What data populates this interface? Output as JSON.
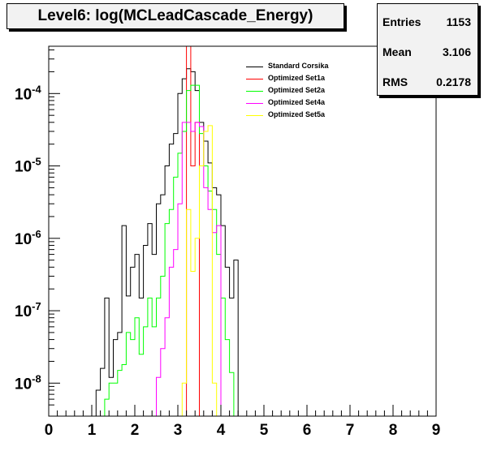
{
  "title": "Level6:  log(MCLeadCascade_Energy)",
  "stats": [
    {
      "key": "Entries",
      "value": "1153"
    },
    {
      "key": "Mean",
      "value": "3.106"
    },
    {
      "key": "RMS",
      "value": "0.2178"
    }
  ],
  "colors": {
    "Standard Corsika": "#000000",
    "Optimized Set1a": "#ff0000",
    "Optimized Set2a": "#00ff00",
    "Optimized Set4a": "#ff00ff",
    "Optimized Set5a": "#ffff00"
  },
  "chart_data": {
    "type": "line",
    "title": "Level6:  log(MCLeadCascade_Energy)",
    "xlabel": "",
    "ylabel": "",
    "xlim": [
      0,
      9
    ],
    "ylim": [
      3.5e-09,
      0.00045
    ],
    "yscale": "log",
    "grid": false,
    "legend_position": "top-center",
    "xticks": [
      "0",
      "1",
      "2",
      "3",
      "4",
      "5",
      "6",
      "7",
      "8",
      "9"
    ],
    "yticks": [
      {
        "base": "10",
        "exp": "-8",
        "value": 1e-08
      },
      {
        "base": "10",
        "exp": "-7",
        "value": 1e-07
      },
      {
        "base": "10",
        "exp": "-6",
        "value": 1e-06
      },
      {
        "base": "10",
        "exp": "-5",
        "value": 1e-05
      },
      {
        "base": "10",
        "exp": "-4",
        "value": 0.0001
      }
    ],
    "bin_width": 0.1,
    "series": [
      {
        "name": "Standard Corsika",
        "color": "#000000",
        "points": [
          [
            1.1,
            8e-09
          ],
          [
            1.2,
            1.6e-08
          ],
          [
            1.3,
            1.5e-07
          ],
          [
            1.4,
            1.2e-08
          ],
          [
            1.5,
            4e-08
          ],
          [
            1.6,
            5e-08
          ],
          [
            1.7,
            1.5e-06
          ],
          [
            1.8,
            1.6e-07
          ],
          [
            1.9,
            4e-07
          ],
          [
            2.0,
            6e-07
          ],
          [
            2.1,
            1.5e-07
          ],
          [
            2.2,
            8e-07
          ],
          [
            2.3,
            1.6e-06
          ],
          [
            2.4,
            6e-07
          ],
          [
            2.5,
            3e-06
          ],
          [
            2.6,
            4e-06
          ],
          [
            2.7,
            1e-05
          ],
          [
            2.8,
            2e-05
          ],
          [
            2.9,
            2.8e-05
          ],
          [
            3.0,
            0.0001
          ],
          [
            3.1,
            0.00016
          ],
          [
            3.2,
            0.00022
          ],
          [
            3.3,
            0.0002
          ],
          [
            3.4,
            0.00011
          ],
          [
            3.5,
            4e-05
          ],
          [
            3.6,
            2.2e-05
          ],
          [
            3.7,
            1.1e-05
          ],
          [
            3.8,
            5e-06
          ],
          [
            3.9,
            4e-06
          ],
          [
            4.0,
            1.5e-06
          ],
          [
            4.1,
            4e-07
          ],
          [
            4.2,
            1.5e-07
          ],
          [
            4.3,
            5e-07
          ]
        ]
      },
      {
        "name": "Optimized Set1a",
        "color": "#ff0000",
        "points": [
          [
            3.2,
            0.00045
          ],
          [
            3.3,
            1e-05
          ],
          [
            3.4,
            4e-05
          ]
        ]
      },
      {
        "name": "Optimized Set2a",
        "color": "#00ff00",
        "points": [
          [
            1.3,
            6e-09
          ],
          [
            1.4,
            1e-08
          ],
          [
            1.5,
            1e-08
          ],
          [
            1.6,
            1.5e-08
          ],
          [
            1.7,
            1.8e-08
          ],
          [
            1.8,
            5e-08
          ],
          [
            1.9,
            4e-08
          ],
          [
            2.0,
            8e-08
          ],
          [
            2.1,
            2.5e-08
          ],
          [
            2.2,
            6e-08
          ],
          [
            2.3,
            1.5e-07
          ],
          [
            2.4,
            6e-08
          ],
          [
            2.5,
            1.5e-07
          ],
          [
            2.6,
            3e-07
          ],
          [
            2.7,
            1.6e-06
          ],
          [
            2.8,
            2.5e-06
          ],
          [
            2.9,
            7e-06
          ],
          [
            3.0,
            1.5e-05
          ],
          [
            3.1,
            3e-05
          ],
          [
            3.2,
            0.00011
          ],
          [
            3.3,
            0.00013
          ],
          [
            3.4,
            0.00013
          ],
          [
            3.5,
            2.8e-05
          ],
          [
            3.6,
            1e-05
          ],
          [
            3.7,
            4.5e-06
          ],
          [
            3.8,
            2.5e-06
          ],
          [
            3.9,
            6e-07
          ],
          [
            4.0,
            1.5e-07
          ],
          [
            4.1,
            4e-08
          ],
          [
            4.2,
            1.4e-08
          ]
        ]
      },
      {
        "name": "Optimized Set4a",
        "color": "#ff00ff",
        "points": [
          [
            2.5,
            1.2e-08
          ],
          [
            2.6,
            3e-08
          ],
          [
            2.7,
            8e-08
          ],
          [
            2.8,
            4e-07
          ],
          [
            2.9,
            7e-07
          ],
          [
            3.0,
            3e-06
          ],
          [
            3.1,
            4e-05
          ],
          [
            3.2,
            4e-05
          ],
          [
            3.3,
            3e-05
          ],
          [
            3.4,
            4e-05
          ],
          [
            3.5,
            3.5e-05
          ],
          [
            3.6,
            5e-06
          ],
          [
            3.7,
            2.5e-06
          ],
          [
            3.8,
            1.2e-06
          ],
          [
            3.9,
            1.5e-06
          ]
        ]
      },
      {
        "name": "Optimized Set5a",
        "color": "#ffff00",
        "points": [
          [
            3.1,
            1e-08
          ],
          [
            3.2,
            2.5e-06
          ],
          [
            3.3,
            3.5e-07
          ],
          [
            3.4,
            1e-06
          ],
          [
            3.5,
            1e-05
          ],
          [
            3.6,
            3e-05
          ],
          [
            3.7,
            3.6e-05
          ],
          [
            3.8,
            1e-08
          ]
        ]
      }
    ]
  }
}
